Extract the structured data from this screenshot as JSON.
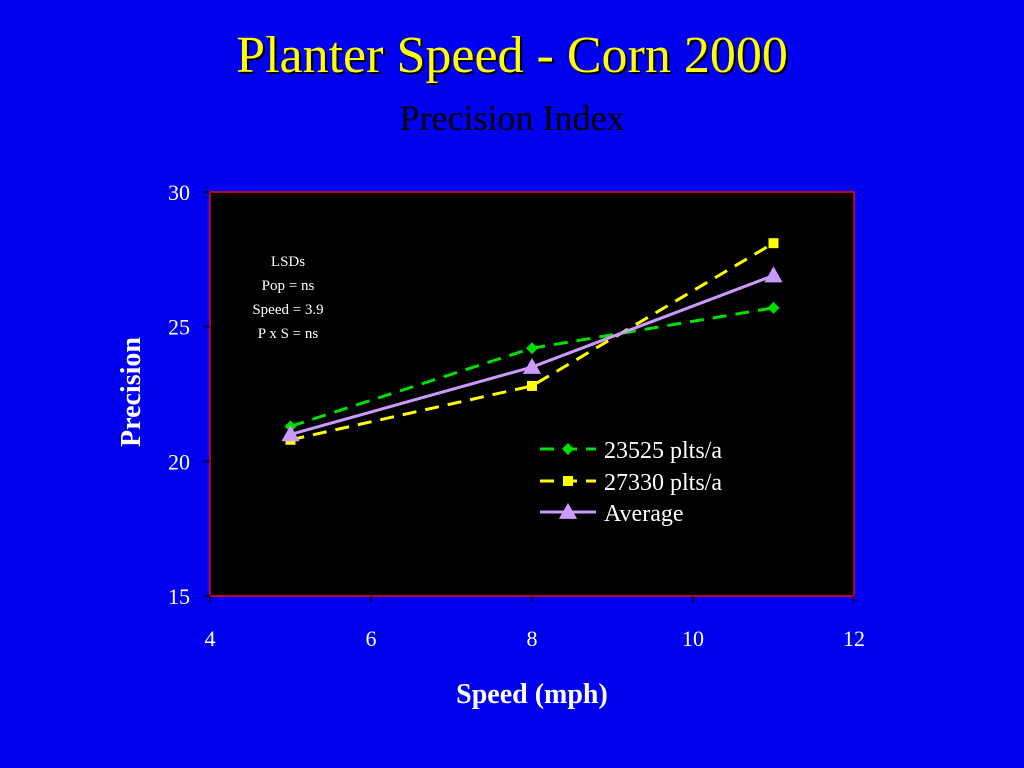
{
  "slide": {
    "title": "Planter Speed - Corn 2000",
    "subtitle": "Precision Index"
  },
  "colors": {
    "background": "#0000f0",
    "title": "#ffff00",
    "plot_area": "#000000",
    "axis_text": "#ffffff",
    "plot_border": "#ff0000"
  },
  "chart_data": {
    "type": "line",
    "xlabel": "Speed (mph)",
    "ylabel": "Precision",
    "xlim": [
      4,
      12
    ],
    "ylim": [
      15,
      30
    ],
    "xticks": [
      4,
      6,
      8,
      10,
      12
    ],
    "yticks": [
      15,
      20,
      25,
      30
    ],
    "grid": false,
    "legend_position": "lower-right",
    "series": [
      {
        "name": "23525 plts/a",
        "x": [
          5,
          8,
          11
        ],
        "y": [
          21.3,
          24.2,
          25.7
        ],
        "color": "#00e000",
        "marker": "diamond",
        "dash": "dashed"
      },
      {
        "name": "27330 plts/a",
        "x": [
          5,
          8,
          11
        ],
        "y": [
          20.8,
          22.8,
          28.1
        ],
        "color": "#ffff00",
        "marker": "square",
        "dash": "dashed"
      },
      {
        "name": "Average",
        "x": [
          5,
          8,
          11
        ],
        "y": [
          21.0,
          23.5,
          26.9
        ],
        "color": "#cc99ff",
        "marker": "triangle",
        "dash": "solid"
      }
    ],
    "annotation": [
      "LSDs",
      "Pop = ns",
      "Speed = 3.9",
      "P x S = ns"
    ]
  }
}
